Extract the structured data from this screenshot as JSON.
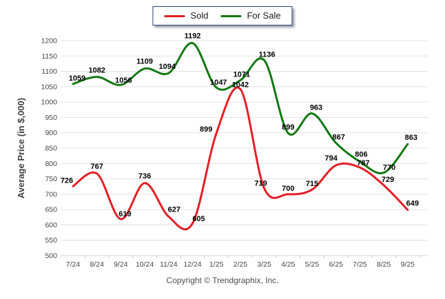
{
  "legend": {
    "items": [
      {
        "label": "Sold",
        "color": "#e31e24"
      },
      {
        "label": "For Sale",
        "color": "#117711"
      }
    ]
  },
  "chart_data": {
    "type": "line",
    "title": "",
    "xlabel": "",
    "ylabel": "Average Price (in $,000)",
    "categories": [
      "7/24",
      "8/24",
      "9/24",
      "10/24",
      "11/24",
      "12/24",
      "1/25",
      "2/25",
      "3/25",
      "4/25",
      "5/25",
      "6/25",
      "7/25",
      "8/25",
      "9/25"
    ],
    "series": [
      {
        "name": "Sold",
        "color": "#e31e24",
        "values": [
          726,
          767,
          619,
          736,
          627,
          605,
          899,
          1042,
          719,
          700,
          715,
          794,
          787,
          729,
          649
        ]
      },
      {
        "name": "For Sale",
        "color": "#117711",
        "values": [
          1059,
          1082,
          1056,
          1109,
          1094,
          1192,
          1047,
          1071,
          1136,
          899,
          963,
          867,
          806,
          770,
          863
        ]
      }
    ],
    "ylim": [
      500,
      1200
    ],
    "ytick_step": 50,
    "grid": "horizontal",
    "legend_position": "top-center",
    "line_shape": "smooth",
    "label_offsets": {
      "Sold": [
        [
          -9,
          -5
        ],
        [
          0,
          -7
        ],
        [
          6,
          -4
        ],
        [
          0,
          -7
        ],
        [
          8,
          -7
        ],
        [
          9,
          -3
        ],
        [
          -15,
          -2
        ],
        [
          0,
          -3
        ],
        [
          -5,
          -4
        ],
        [
          0,
          -5
        ],
        [
          0,
          -5
        ],
        [
          -7,
          -7
        ],
        [
          5,
          -3
        ],
        [
          6,
          -5
        ],
        [
          7,
          -6
        ]
      ],
      "For Sale": [
        [
          6,
          -5
        ],
        [
          0,
          -6
        ],
        [
          4,
          -3
        ],
        [
          0,
          -7
        ],
        [
          -2,
          -6
        ],
        [
          0,
          -7
        ],
        [
          3,
          -4
        ],
        [
          2,
          -5
        ],
        [
          4,
          -5
        ],
        [
          0,
          -5
        ],
        [
          6,
          -5
        ],
        [
          4,
          -5
        ],
        [
          2,
          -7
        ],
        [
          8,
          -4
        ],
        [
          5,
          -6
        ]
      ]
    },
    "colors": {
      "grid": "#e0e0e0",
      "axis": "#c7d0da",
      "tick_label": "#454545",
      "axis_title": "#3f3f3f",
      "data_label": "#000000"
    }
  },
  "footer": {
    "copyright": "Copyright © Trendgraphix, Inc."
  }
}
